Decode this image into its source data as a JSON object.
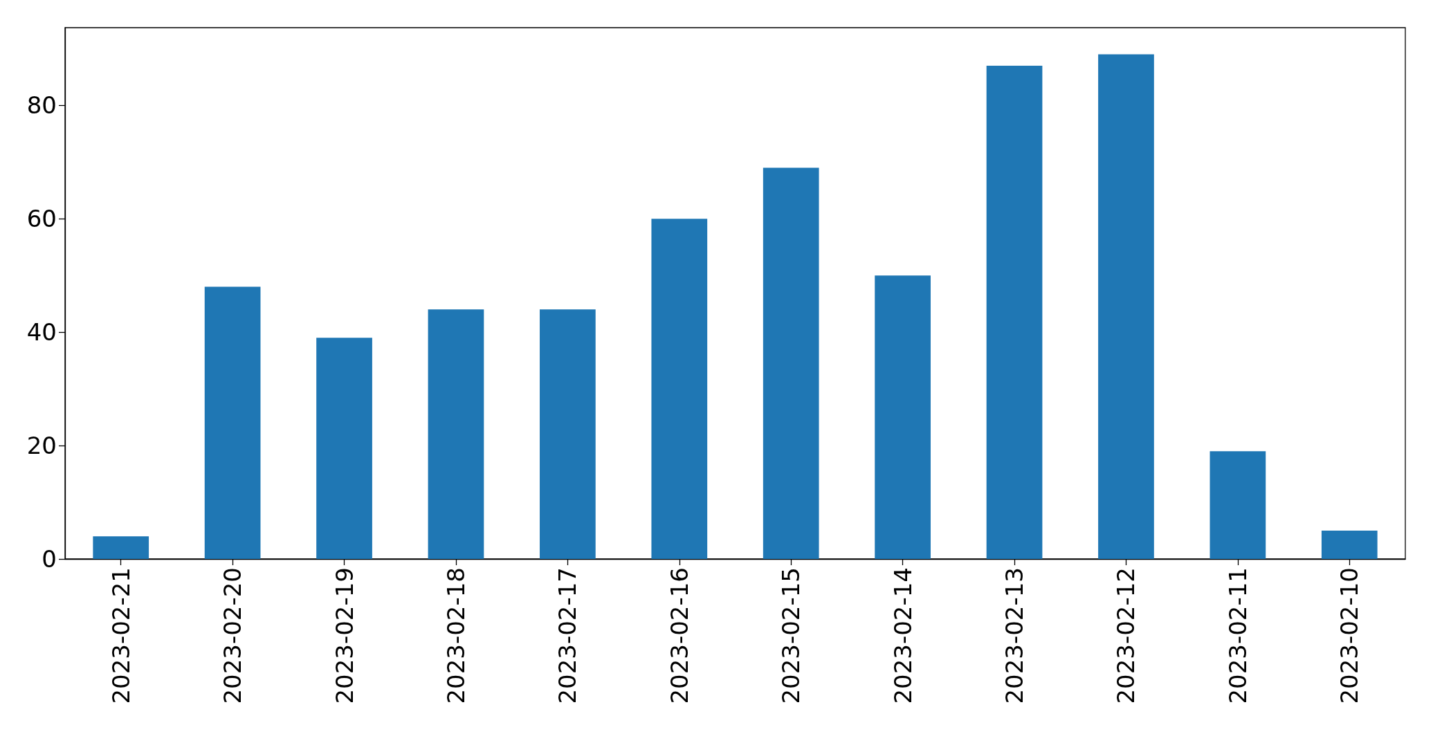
{
  "chart_data": {
    "type": "bar",
    "categories": [
      "2023-02-21",
      "2023-02-20",
      "2023-02-19",
      "2023-02-18",
      "2023-02-17",
      "2023-02-16",
      "2023-02-15",
      "2023-02-14",
      "2023-02-13",
      "2023-02-12",
      "2023-02-11",
      "2023-02-10"
    ],
    "values": [
      4,
      48,
      39,
      44,
      44,
      60,
      69,
      50,
      87,
      89,
      19,
      5
    ],
    "color": "#1f77b4",
    "ylim": [
      0,
      93.7
    ],
    "yticks": [
      0,
      20,
      40,
      60,
      80
    ],
    "grid": false
  }
}
